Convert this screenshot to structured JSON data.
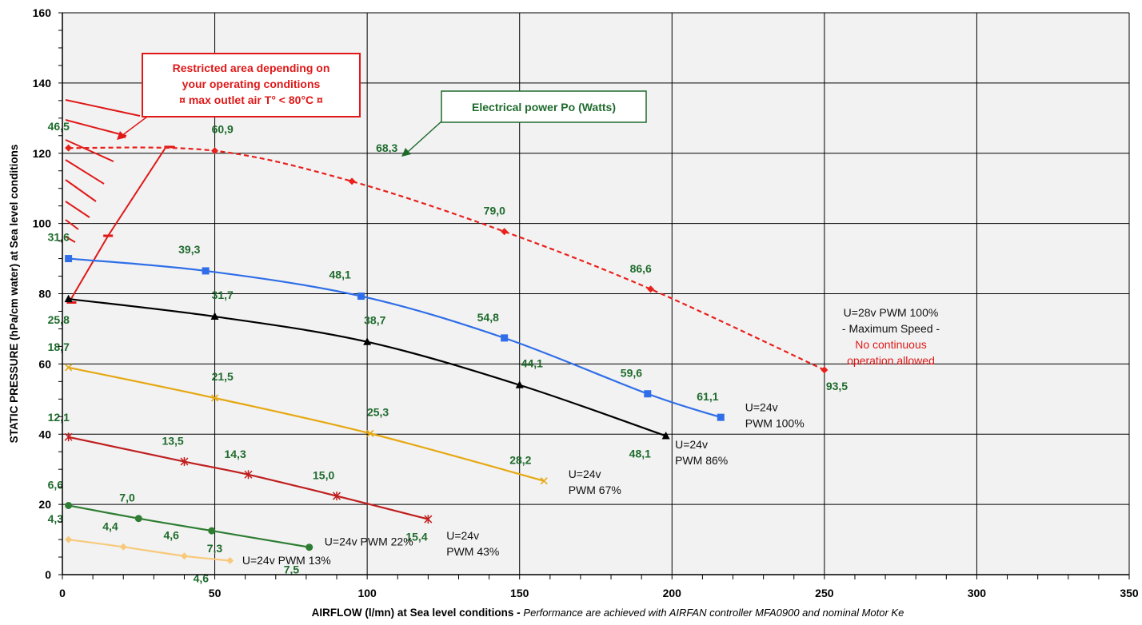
{
  "chart_data": {
    "type": "line",
    "xlabel": "AIRFLOW (l/mn) at Sea level conditions",
    "xlabel_separator": " - ",
    "xlabel_note": "Performance are achieved with AIRFAN controller MFA0900 and nominal Motor Ke",
    "ylabel": "STATIC PRESSURE (hPa/cm water) at Sea level conditions",
    "xlim": [
      0,
      350
    ],
    "ylim": [
      0,
      160
    ],
    "x_ticks": [
      0,
      50,
      100,
      150,
      200,
      250,
      300,
      350
    ],
    "y_ticks": [
      0,
      20,
      40,
      60,
      80,
      100,
      120,
      140,
      160
    ],
    "grid": true,
    "series": [
      {
        "key": "pwm100_28v",
        "color": "#e8211d",
        "dashed": true,
        "marker": "diamond",
        "x": [
          2,
          50,
          95,
          145,
          193,
          250
        ],
        "y": [
          121.5,
          120.7,
          112,
          97.7,
          81.3,
          58.3
        ],
        "power": [
          "46,5",
          "60,9",
          "68,3",
          "79,0",
          "86,6",
          "93,5"
        ],
        "label_lines": [
          "U=28v  PWM 100%",
          "- Maximum Speed -"
        ],
        "warning_lines": [
          "No continuous",
          "operation allowed"
        ]
      },
      {
        "key": "pwm100_24v",
        "color": "#2f6ee8",
        "dashed": false,
        "marker": "square",
        "x": [
          2,
          47,
          98,
          145,
          192,
          216
        ],
        "y": [
          90,
          86.5,
          79.3,
          67.4,
          51.5,
          44.8
        ],
        "power": [
          "31,6",
          "39,3",
          "48,1",
          "54,8",
          "59,6",
          "61,1"
        ],
        "label_lines": [
          "U=24v",
          "PWM 100%"
        ]
      },
      {
        "key": "pwm86_24v",
        "color": "#000000",
        "dashed": false,
        "marker": "triangle",
        "x": [
          2,
          50,
          100,
          150,
          198
        ],
        "y": [
          78.5,
          73.5,
          66.3,
          54,
          39.5
        ],
        "power": [
          "25,8",
          "31,7",
          "38,7",
          "44,1",
          "48,1"
        ],
        "label_lines": [
          "U=24v",
          "PWM 86%"
        ]
      },
      {
        "key": "pwm67_24v",
        "color": "#e6a812",
        "dashed": false,
        "marker": "x",
        "x": [
          2,
          50,
          101,
          158
        ],
        "y": [
          59,
          50.3,
          40.2,
          26.7
        ],
        "power": [
          "18,7",
          "21,5",
          "25,3",
          "28,2"
        ],
        "label_lines": [
          "U=24v",
          "PWM 67%"
        ]
      },
      {
        "key": "pwm43_24v",
        "color": "#c01e1e",
        "dashed": false,
        "marker": "star",
        "x": [
          2,
          40,
          61,
          90,
          120
        ],
        "y": [
          39.2,
          32.2,
          28.5,
          22.4,
          15.8
        ],
        "power": [
          "12,1",
          "13,5",
          "14,3",
          "15,0",
          "15,4"
        ],
        "label_lines": [
          "U=24v",
          "PWM 43%"
        ]
      },
      {
        "key": "pwm22_24v",
        "color": "#2e7d32",
        "dashed": false,
        "marker": "circle",
        "x": [
          2,
          25,
          49,
          81
        ],
        "y": [
          19.7,
          16,
          12.5,
          7.8
        ],
        "power": [
          "6,6",
          "7,0",
          "7,3",
          "7,5"
        ],
        "label_lines": [
          "U=24v PWM 22%"
        ]
      },
      {
        "key": "pwm13_24v",
        "color": "#f7c97a",
        "dashed": false,
        "marker": "diamond",
        "x": [
          2,
          20,
          40,
          55
        ],
        "y": [
          10,
          7.9,
          5.3,
          4
        ],
        "power": [
          "4,3",
          "4,4",
          "4,6",
          "4,6"
        ],
        "label_lines": [
          "U=24v PWM 13%"
        ]
      }
    ],
    "annotations": {
      "restricted_lines": [
        "Restricted area depending on",
        "your operating conditions",
        "¤ max outlet air T° < 80°C ¤"
      ],
      "power_callout": "Electrical power Po (Watts)"
    }
  }
}
